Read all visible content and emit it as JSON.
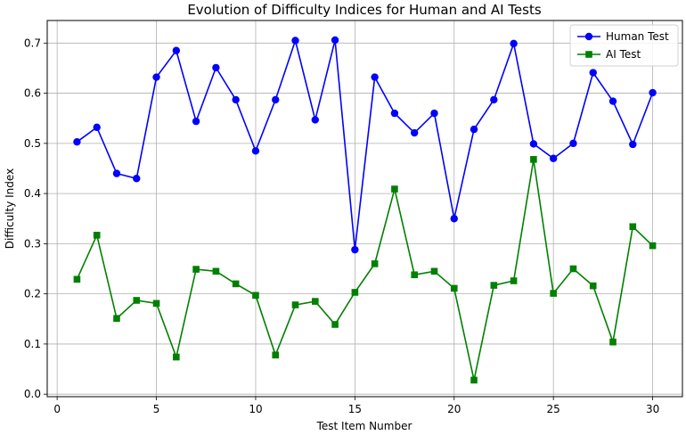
{
  "chart_data": {
    "type": "line",
    "title": "Evolution of Difficulty Indices for Human and AI Tests",
    "xlabel": "Test Item Number",
    "ylabel": "Difficulty Index",
    "xlim": [
      -0.5,
      31.5
    ],
    "ylim": [
      -0.005,
      0.745
    ],
    "xticks": [
      0,
      5,
      10,
      15,
      20,
      25,
      30
    ],
    "yticks": [
      0.0,
      0.1,
      0.2,
      0.3,
      0.4,
      0.5,
      0.6,
      0.7
    ],
    "ytick_labels": [
      "0.0",
      "0.1",
      "0.2",
      "0.3",
      "0.4",
      "0.5",
      "0.6",
      "0.7"
    ],
    "grid": true,
    "legend_position": "top-right",
    "x": [
      1,
      2,
      3,
      4,
      5,
      6,
      7,
      8,
      9,
      10,
      11,
      12,
      13,
      14,
      15,
      16,
      17,
      18,
      19,
      20,
      21,
      22,
      23,
      24,
      25,
      26,
      27,
      28,
      29,
      30
    ],
    "series": [
      {
        "name": "Human Test",
        "color": "#0000ff",
        "marker": "circle",
        "values": [
          0.503,
          0.532,
          0.44,
          0.43,
          0.632,
          0.685,
          0.544,
          0.651,
          0.587,
          0.485,
          0.587,
          0.705,
          0.547,
          0.706,
          0.288,
          0.632,
          0.56,
          0.521,
          0.56,
          0.35,
          0.528,
          0.587,
          0.699,
          0.499,
          0.47,
          0.5,
          0.641,
          0.584,
          0.498,
          0.601
        ]
      },
      {
        "name": "AI Test",
        "color": "#008000",
        "marker": "square",
        "values": [
          0.229,
          0.317,
          0.151,
          0.187,
          0.181,
          0.074,
          0.249,
          0.245,
          0.22,
          0.197,
          0.078,
          0.178,
          0.185,
          0.139,
          0.203,
          0.26,
          0.409,
          0.238,
          0.245,
          0.211,
          0.028,
          0.217,
          0.226,
          0.468,
          0.201,
          0.25,
          0.216,
          0.104,
          0.334,
          0.296
        ]
      }
    ]
  }
}
